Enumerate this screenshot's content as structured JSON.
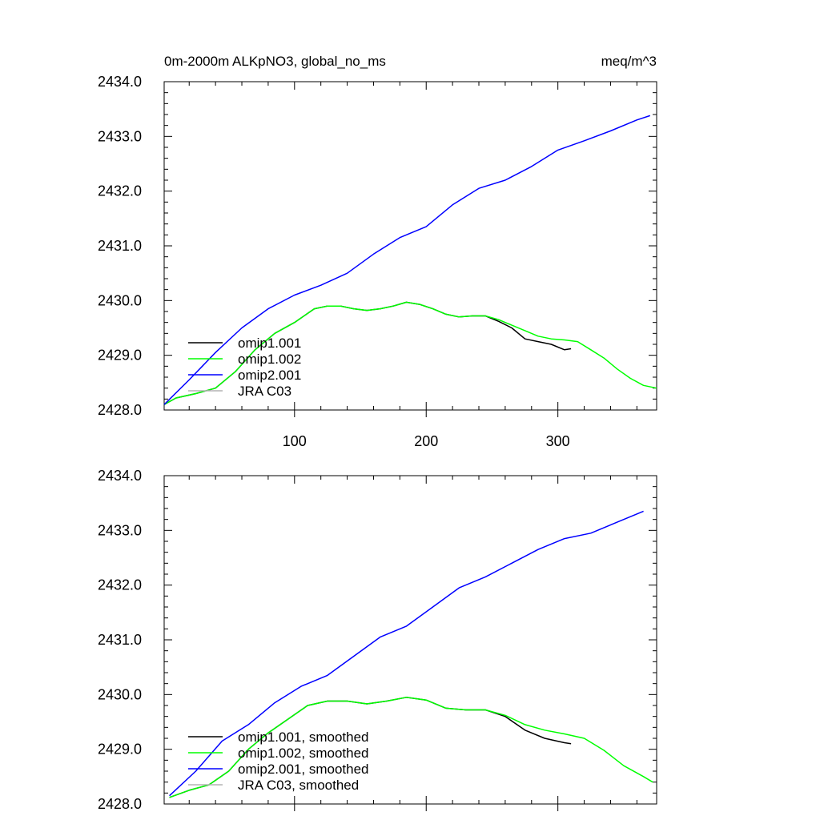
{
  "header": {
    "title_left": "0m-2000m ALKpNO3, global_no_ms",
    "title_right": "meq/m^3"
  },
  "colors": {
    "omip1_001": "#000000",
    "omip1_002": "#00ff00",
    "omip2_001": "#0000ff",
    "jra_c03": "#b4b4b4"
  },
  "chart_data": [
    {
      "type": "line",
      "panel": "top",
      "xlim": [
        1,
        375
      ],
      "ylim": [
        2428.0,
        2434.0
      ],
      "x_ticks": [
        100,
        200,
        300
      ],
      "x_tick_labels": [
        "100",
        "200",
        "300"
      ],
      "y_ticks": [
        2428.0,
        2429.0,
        2430.0,
        2431.0,
        2432.0,
        2433.0,
        2434.0
      ],
      "y_tick_labels": [
        "2428.0",
        "2429.0",
        "2430.0",
        "2431.0",
        "2432.0",
        "2433.0",
        "2434.0"
      ],
      "legend_position": "lower-left",
      "series": [
        {
          "name": "omip1.001",
          "color_key": "omip1_001",
          "x": [
            1,
            10,
            25,
            40,
            55,
            70,
            85,
            100,
            115,
            125,
            135,
            145,
            155,
            165,
            175,
            185,
            195,
            205,
            215,
            225,
            235,
            245,
            255,
            265,
            275,
            285,
            295,
            305,
            310
          ],
          "y": [
            2428.1,
            2428.22,
            2428.3,
            2428.4,
            2428.7,
            2429.1,
            2429.4,
            2429.6,
            2429.85,
            2429.9,
            2429.9,
            2429.85,
            2429.82,
            2429.85,
            2429.9,
            2429.97,
            2429.93,
            2429.85,
            2429.75,
            2429.7,
            2429.72,
            2429.72,
            2429.62,
            2429.5,
            2429.3,
            2429.25,
            2429.2,
            2429.1,
            2429.12
          ]
        },
        {
          "name": "omip1.002",
          "color_key": "omip1_002",
          "x": [
            1,
            10,
            25,
            40,
            55,
            70,
            85,
            100,
            115,
            125,
            135,
            145,
            155,
            165,
            175,
            185,
            195,
            205,
            215,
            225,
            235,
            245,
            255,
            265,
            275,
            285,
            295,
            305,
            315,
            325,
            335,
            345,
            355,
            365,
            375
          ],
          "y": [
            2428.1,
            2428.22,
            2428.3,
            2428.4,
            2428.7,
            2429.1,
            2429.4,
            2429.6,
            2429.85,
            2429.9,
            2429.9,
            2429.85,
            2429.82,
            2429.85,
            2429.9,
            2429.97,
            2429.93,
            2429.85,
            2429.75,
            2429.7,
            2429.72,
            2429.72,
            2429.65,
            2429.55,
            2429.45,
            2429.35,
            2429.3,
            2429.28,
            2429.25,
            2429.1,
            2428.95,
            2428.75,
            2428.58,
            2428.45,
            2428.4
          ]
        },
        {
          "name": "omip2.001",
          "color_key": "omip2_001",
          "x": [
            1,
            20,
            40,
            60,
            80,
            100,
            120,
            140,
            160,
            180,
            200,
            220,
            240,
            260,
            280,
            300,
            320,
            340,
            360,
            370
          ],
          "y": [
            2428.1,
            2428.55,
            2429.05,
            2429.5,
            2429.85,
            2430.1,
            2430.28,
            2430.5,
            2430.85,
            2431.15,
            2431.35,
            2431.75,
            2432.05,
            2432.2,
            2432.45,
            2432.75,
            2432.92,
            2433.1,
            2433.3,
            2433.38
          ]
        },
        {
          "name": "JRA C03",
          "color_key": "jra_c03",
          "x": [],
          "y": []
        }
      ]
    },
    {
      "type": "line",
      "panel": "bottom",
      "xlim": [
        1,
        375
      ],
      "ylim": [
        2428.0,
        2434.0
      ],
      "x_ticks": [
        100,
        200,
        300
      ],
      "y_ticks": [
        2428.0,
        2429.0,
        2430.0,
        2431.0,
        2432.0,
        2433.0,
        2434.0
      ],
      "y_tick_labels": [
        "2428.0",
        "2429.0",
        "2430.0",
        "2431.0",
        "2432.0",
        "2433.0",
        "2434.0"
      ],
      "legend_position": "lower-left",
      "series": [
        {
          "name": "omip1.001, smoothed",
          "color_key": "omip1_001",
          "x": [
            5,
            20,
            35,
            50,
            65,
            80,
            95,
            110,
            125,
            140,
            155,
            170,
            185,
            200,
            215,
            230,
            245,
            260,
            275,
            290,
            305,
            310
          ],
          "y": [
            2428.12,
            2428.25,
            2428.35,
            2428.6,
            2429.0,
            2429.3,
            2429.55,
            2429.8,
            2429.88,
            2429.88,
            2429.83,
            2429.88,
            2429.95,
            2429.9,
            2429.75,
            2429.72,
            2429.72,
            2429.6,
            2429.35,
            2429.2,
            2429.12,
            2429.1
          ]
        },
        {
          "name": "omip1.002, smoothed",
          "color_key": "omip1_002",
          "x": [
            5,
            20,
            35,
            50,
            65,
            80,
            95,
            110,
            125,
            140,
            155,
            170,
            185,
            200,
            215,
            230,
            245,
            260,
            275,
            290,
            305,
            320,
            335,
            350,
            365,
            372
          ],
          "y": [
            2428.12,
            2428.25,
            2428.35,
            2428.6,
            2429.0,
            2429.3,
            2429.55,
            2429.8,
            2429.88,
            2429.88,
            2429.83,
            2429.88,
            2429.95,
            2429.9,
            2429.75,
            2429.72,
            2429.72,
            2429.62,
            2429.45,
            2429.35,
            2429.28,
            2429.2,
            2428.98,
            2428.7,
            2428.5,
            2428.4
          ]
        },
        {
          "name": "omip2.001, smoothed",
          "color_key": "omip2_001",
          "x": [
            5,
            25,
            45,
            65,
            85,
            105,
            125,
            145,
            165,
            185,
            205,
            225,
            245,
            265,
            285,
            305,
            325,
            345,
            365
          ],
          "y": [
            2428.15,
            2428.6,
            2429.15,
            2429.45,
            2429.85,
            2430.15,
            2430.35,
            2430.7,
            2431.05,
            2431.25,
            2431.6,
            2431.95,
            2432.15,
            2432.4,
            2432.65,
            2432.85,
            2432.95,
            2433.15,
            2433.35
          ]
        },
        {
          "name": "JRA C03, smoothed",
          "color_key": "jra_c03",
          "x": [],
          "y": []
        }
      ]
    }
  ]
}
